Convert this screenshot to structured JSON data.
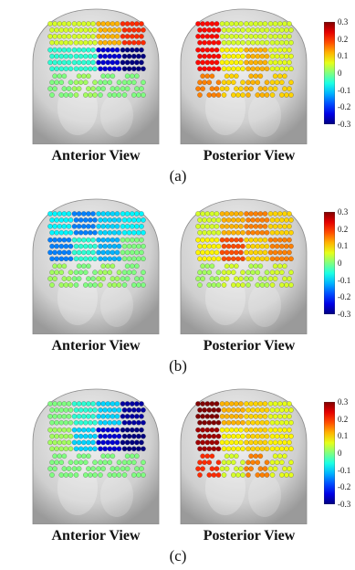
{
  "views": {
    "anterior": "Anterior View",
    "posterior": "Posterior View"
  },
  "colorbar": {
    "ticks": [
      "0.3",
      "0.2",
      "0.1",
      "0",
      "-0.1",
      "-0.2",
      "-0.3"
    ],
    "range": [
      -0.3,
      0.3
    ],
    "colormap": "jet"
  },
  "panels": [
    {
      "letter": "(a)",
      "has_colorbar": true,
      "anterior_regions": [
        0.05,
        0.05,
        0.12,
        0.2,
        -0.05,
        -0.05,
        -0.25,
        -0.3,
        0.0,
        0.02,
        0.0,
        0.0
      ],
      "posterior_regions": [
        0.22,
        0.05,
        0.05,
        0.05,
        0.22,
        0.08,
        0.12,
        0.06,
        0.15,
        0.1,
        0.12,
        0.1
      ]
    },
    {
      "letter": "(b)",
      "has_colorbar": true,
      "anterior_regions": [
        -0.08,
        -0.15,
        -0.1,
        -0.08,
        -0.15,
        -0.05,
        -0.12,
        0.0,
        0.02,
        0.0,
        0.02,
        0.0
      ],
      "posterior_regions": [
        0.05,
        0.12,
        0.15,
        0.1,
        0.08,
        0.18,
        0.1,
        0.15,
        0.02,
        0.05,
        0.03,
        0.05
      ]
    },
    {
      "letter": "(c)",
      "has_colorbar": true,
      "anterior_regions": [
        0.0,
        -0.05,
        -0.1,
        -0.28,
        0.02,
        -0.1,
        -0.25,
        -0.3,
        0.0,
        0.0,
        0.0,
        0.0
      ],
      "posterior_regions": [
        0.3,
        0.12,
        0.1,
        0.06,
        0.28,
        0.08,
        0.1,
        0.08,
        0.2,
        0.05,
        0.15,
        0.06
      ]
    }
  ]
}
